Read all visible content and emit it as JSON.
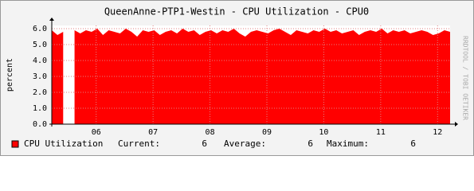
{
  "chart_data": {
    "type": "area",
    "title": "QueenAnne-PTP1-Westin - CPU Utilization - CPU0",
    "y_label": "percent",
    "side_text": "RRDTOOL / TOBI OETIKER",
    "x": [
      5.22,
      5.32,
      5.42,
      5.52,
      5.62,
      5.72,
      5.82,
      5.92,
      6.02,
      6.12,
      6.22,
      6.32,
      6.42,
      6.52,
      6.62,
      6.72,
      6.82,
      6.92,
      7.02,
      7.12,
      7.22,
      7.32,
      7.42,
      7.52,
      7.62,
      7.72,
      7.82,
      7.92,
      8.02,
      8.12,
      8.22,
      8.32,
      8.42,
      8.52,
      8.62,
      8.72,
      8.82,
      8.92,
      9.02,
      9.12,
      9.22,
      9.32,
      9.42,
      9.52,
      9.62,
      9.72,
      9.82,
      9.92,
      10.02,
      10.12,
      10.22,
      10.32,
      10.42,
      10.52,
      10.62,
      10.72,
      10.82,
      10.92,
      11.02,
      11.12,
      11.22,
      11.32,
      11.42,
      11.52,
      11.62,
      11.72,
      11.82,
      11.92,
      12.02,
      12.12,
      12.22
    ],
    "series": [
      {
        "name": "CPU Utilization",
        "color": "#ff0000",
        "values": [
          5.9,
          5.6,
          5.8,
          null,
          5.9,
          5.7,
          5.9,
          5.8,
          6.0,
          5.6,
          5.9,
          5.8,
          5.7,
          6.0,
          5.8,
          5.5,
          5.9,
          5.8,
          5.9,
          5.6,
          5.8,
          5.9,
          5.7,
          6.0,
          5.8,
          5.9,
          5.6,
          5.8,
          5.9,
          5.7,
          5.9,
          5.8,
          6.0,
          5.7,
          5.5,
          5.8,
          5.9,
          5.8,
          5.7,
          5.9,
          6.0,
          5.8,
          5.6,
          5.9,
          5.8,
          5.7,
          5.9,
          5.8,
          6.0,
          5.8,
          5.9,
          5.7,
          5.8,
          5.9,
          5.6,
          5.8,
          5.9,
          5.8,
          6.0,
          5.7,
          5.9,
          5.8,
          5.9,
          5.7,
          5.8,
          5.9,
          5.8,
          5.6,
          5.7,
          5.9,
          5.8
        ]
      }
    ],
    "legend_stats": [
      {
        "label": "Current:",
        "value": 6
      },
      {
        "label": "Average:",
        "value": 6
      },
      {
        "label": "Maximum:",
        "value": 6
      }
    ],
    "xlim": [
      5.22,
      12.22
    ],
    "xticks": [
      {
        "value": 6,
        "label": "06"
      },
      {
        "value": 7,
        "label": "07"
      },
      {
        "value": 8,
        "label": "08"
      },
      {
        "value": 9,
        "label": "09"
      },
      {
        "value": 10,
        "label": "10"
      },
      {
        "value": 11,
        "label": "11"
      },
      {
        "value": 12,
        "label": "12"
      }
    ],
    "ylim": [
      0,
      6.2
    ],
    "yticks": [
      {
        "value": 0,
        "label": "0.0"
      },
      {
        "value": 1,
        "label": "1.0"
      },
      {
        "value": 2,
        "label": "2.0"
      },
      {
        "value": 3,
        "label": "3.0"
      },
      {
        "value": 4,
        "label": "4.0"
      },
      {
        "value": 5,
        "label": "5.0"
      },
      {
        "value": 6,
        "label": "6.0"
      }
    ],
    "grid": true
  }
}
